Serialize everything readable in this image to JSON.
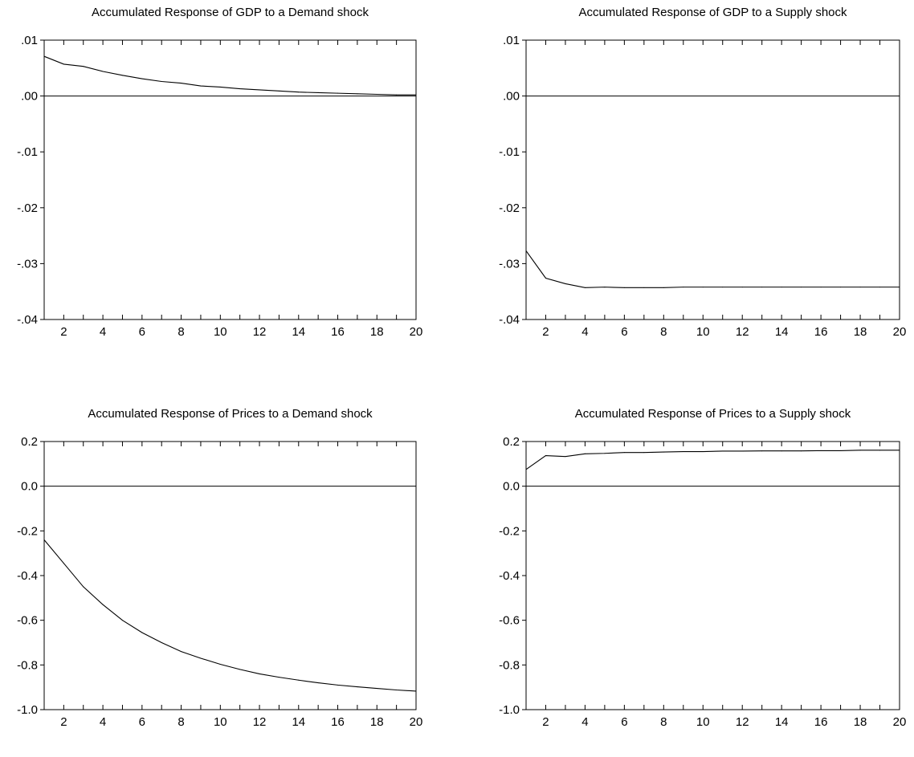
{
  "chart_data": [
    {
      "type": "line",
      "title": "Accumulated Response of GDP to a Demand shock",
      "xlabel": "",
      "ylabel": "",
      "x": [
        1,
        2,
        3,
        4,
        5,
        6,
        7,
        8,
        9,
        10,
        11,
        12,
        13,
        14,
        15,
        16,
        17,
        18,
        19,
        20
      ],
      "series": [
        {
          "values": [
            0.0071,
            0.0057,
            0.0053,
            0.0044,
            0.0037,
            0.0031,
            0.0026,
            0.0023,
            0.0018,
            0.0016,
            0.0013,
            0.0011,
            0.0009,
            0.0007,
            0.0006,
            0.0005,
            0.0004,
            0.0003,
            0.0002,
            0.0002
          ]
        }
      ],
      "xlim": [
        1,
        20
      ],
      "ylim": [
        -0.04,
        0.01
      ],
      "x_ticks": [
        2,
        4,
        6,
        8,
        10,
        12,
        14,
        16,
        18,
        20
      ],
      "x_tick_labels": [
        "2",
        "4",
        "6",
        "8",
        "10",
        "12",
        "14",
        "16",
        "18",
        "20"
      ],
      "y_ticks": [
        0.01,
        0.0,
        -0.01,
        -0.02,
        -0.03,
        -0.04
      ],
      "y_tick_labels": [
        ".01",
        ".00",
        "-.01",
        "-.02",
        "-.03",
        "-.04"
      ],
      "zero_line": true,
      "grid": false,
      "legend": "none"
    },
    {
      "type": "line",
      "title": "Accumulated Response of GDP to a Supply shock",
      "xlabel": "",
      "ylabel": "",
      "x": [
        1,
        2,
        3,
        4,
        5,
        6,
        7,
        8,
        9,
        10,
        11,
        12,
        13,
        14,
        15,
        16,
        17,
        18,
        19,
        20
      ],
      "series": [
        {
          "values": [
            -0.0277,
            -0.0326,
            -0.0336,
            -0.0343,
            -0.0342,
            -0.0343,
            -0.0343,
            -0.0343,
            -0.0342,
            -0.0342,
            -0.0342,
            -0.0342,
            -0.0342,
            -0.0342,
            -0.0342,
            -0.0342,
            -0.0342,
            -0.0342,
            -0.0342,
            -0.0342
          ]
        }
      ],
      "xlim": [
        1,
        20
      ],
      "ylim": [
        -0.04,
        0.01
      ],
      "x_ticks": [
        2,
        4,
        6,
        8,
        10,
        12,
        14,
        16,
        18,
        20
      ],
      "x_tick_labels": [
        "2",
        "4",
        "6",
        "8",
        "10",
        "12",
        "14",
        "16",
        "18",
        "20"
      ],
      "y_ticks": [
        0.01,
        0.0,
        -0.01,
        -0.02,
        -0.03,
        -0.04
      ],
      "y_tick_labels": [
        ".01",
        ".00",
        "-.01",
        "-.02",
        "-.03",
        "-.04"
      ],
      "zero_line": true,
      "grid": false,
      "legend": "none"
    },
    {
      "type": "line",
      "title": "Accumulated Response of Prices to a Demand shock",
      "xlabel": "",
      "ylabel": "",
      "x": [
        1,
        2,
        3,
        4,
        5,
        6,
        7,
        8,
        9,
        10,
        11,
        12,
        13,
        14,
        15,
        16,
        17,
        18,
        19,
        20
      ],
      "series": [
        {
          "values": [
            -0.24,
            -0.345,
            -0.45,
            -0.53,
            -0.6,
            -0.655,
            -0.7,
            -0.74,
            -0.77,
            -0.797,
            -0.82,
            -0.84,
            -0.855,
            -0.868,
            -0.88,
            -0.89,
            -0.898,
            -0.905,
            -0.912,
            -0.917
          ]
        }
      ],
      "xlim": [
        1,
        20
      ],
      "ylim": [
        -1.0,
        0.2
      ],
      "x_ticks": [
        2,
        4,
        6,
        8,
        10,
        12,
        14,
        16,
        18,
        20
      ],
      "x_tick_labels": [
        "2",
        "4",
        "6",
        "8",
        "10",
        "12",
        "14",
        "16",
        "18",
        "20"
      ],
      "y_ticks": [
        0.2,
        0.0,
        -0.2,
        -0.4,
        -0.6,
        -0.8,
        -1.0
      ],
      "y_tick_labels": [
        "0.2",
        "0.0",
        "-0.2",
        "-0.4",
        "-0.6",
        "-0.8",
        "-1.0"
      ],
      "zero_line": true,
      "grid": false,
      "legend": "none"
    },
    {
      "type": "line",
      "title": "Accumulated Response of Prices to a Supply shock",
      "xlabel": "",
      "ylabel": "",
      "x": [
        1,
        2,
        3,
        4,
        5,
        6,
        7,
        8,
        9,
        10,
        11,
        12,
        13,
        14,
        15,
        16,
        17,
        18,
        19,
        20
      ],
      "series": [
        {
          "values": [
            0.075,
            0.137,
            0.133,
            0.145,
            0.147,
            0.151,
            0.151,
            0.153,
            0.155,
            0.155,
            0.157,
            0.157,
            0.158,
            0.158,
            0.158,
            0.159,
            0.159,
            0.161,
            0.161,
            0.161
          ]
        }
      ],
      "xlim": [
        1,
        20
      ],
      "ylim": [
        -1.0,
        0.2
      ],
      "x_ticks": [
        2,
        4,
        6,
        8,
        10,
        12,
        14,
        16,
        18,
        20
      ],
      "x_tick_labels": [
        "2",
        "4",
        "6",
        "8",
        "10",
        "12",
        "14",
        "16",
        "18",
        "20"
      ],
      "y_ticks": [
        0.2,
        0.0,
        -0.2,
        -0.4,
        -0.6,
        -0.8,
        -1.0
      ],
      "y_tick_labels": [
        "0.2",
        "0.0",
        "-0.2",
        "-0.4",
        "-0.6",
        "-0.8",
        "-1.0"
      ],
      "zero_line": true,
      "grid": false,
      "legend": "none"
    }
  ]
}
